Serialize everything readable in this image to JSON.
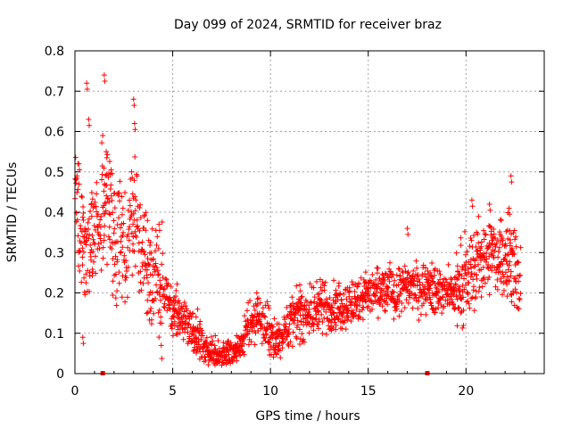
{
  "chart_data": {
    "type": "scatter",
    "title": "Day 099 of 2024, SRMTID for receiver braz",
    "xlabel": "GPS time / hours",
    "ylabel": "SRMTID / TECUs",
    "xlim": [
      0,
      24
    ],
    "ylim": [
      0,
      0.8
    ],
    "x_ticks": [
      "0",
      "5",
      "10",
      "15",
      "20"
    ],
    "y_ticks": [
      "0",
      "0.1",
      "0.2",
      "0.3",
      "0.4",
      "0.5",
      "0.6",
      "0.7",
      "0.8"
    ],
    "grid": true,
    "marker": "+",
    "color": "#ff0000",
    "trend": [
      [
        0,
        0.45
      ],
      [
        0.3,
        0.38
      ],
      [
        0.6,
        0.3
      ],
      [
        0.9,
        0.3
      ],
      [
        1.2,
        0.36
      ],
      [
        1.5,
        0.44
      ],
      [
        1.8,
        0.4
      ],
      [
        2.1,
        0.33
      ],
      [
        2.4,
        0.3
      ],
      [
        2.7,
        0.33
      ],
      [
        3.0,
        0.42
      ],
      [
        3.3,
        0.33
      ],
      [
        3.6,
        0.26
      ],
      [
        4.0,
        0.24
      ],
      [
        4.5,
        0.2
      ],
      [
        5.0,
        0.15
      ],
      [
        5.5,
        0.14
      ],
      [
        6.0,
        0.11
      ],
      [
        6.5,
        0.07
      ],
      [
        7.0,
        0.05
      ],
      [
        7.5,
        0.05
      ],
      [
        8.0,
        0.05
      ],
      [
        8.5,
        0.07
      ],
      [
        9.0,
        0.13
      ],
      [
        9.4,
        0.15
      ],
      [
        9.8,
        0.11
      ],
      [
        10.2,
        0.08
      ],
      [
        10.6,
        0.1
      ],
      [
        11.0,
        0.13
      ],
      [
        11.5,
        0.14
      ],
      [
        12.0,
        0.15
      ],
      [
        12.5,
        0.17
      ],
      [
        13.0,
        0.16
      ],
      [
        13.5,
        0.17
      ],
      [
        14.0,
        0.17
      ],
      [
        14.5,
        0.18
      ],
      [
        15.0,
        0.2
      ],
      [
        15.5,
        0.2
      ],
      [
        16.0,
        0.21
      ],
      [
        16.5,
        0.2
      ],
      [
        17.0,
        0.22
      ],
      [
        17.5,
        0.21
      ],
      [
        18.0,
        0.22
      ],
      [
        18.5,
        0.2
      ],
      [
        19.0,
        0.2
      ],
      [
        19.5,
        0.2
      ],
      [
        20.0,
        0.24
      ],
      [
        20.5,
        0.26
      ],
      [
        21.0,
        0.28
      ],
      [
        21.5,
        0.3
      ],
      [
        22.0,
        0.3
      ],
      [
        22.4,
        0.27
      ],
      [
        22.8,
        0.22
      ]
    ],
    "spikes": [
      [
        0.2,
        0.52
      ],
      [
        0.6,
        0.72
      ],
      [
        0.7,
        0.63
      ],
      [
        1.5,
        0.74
      ],
      [
        1.6,
        0.55
      ],
      [
        3.0,
        0.68
      ],
      [
        3.05,
        0.62
      ],
      [
        2.9,
        0.5
      ],
      [
        4.3,
        0.37
      ],
      [
        9.3,
        0.2
      ],
      [
        17.0,
        0.36
      ],
      [
        20.3,
        0.43
      ],
      [
        21.2,
        0.42
      ],
      [
        22.3,
        0.49
      ],
      [
        22.2,
        0.41
      ],
      [
        0.4,
        0.09
      ],
      [
        11.5,
        0.22
      ]
    ],
    "markers": [
      [
        1.4,
        0
      ],
      [
        18.0,
        0
      ]
    ]
  }
}
